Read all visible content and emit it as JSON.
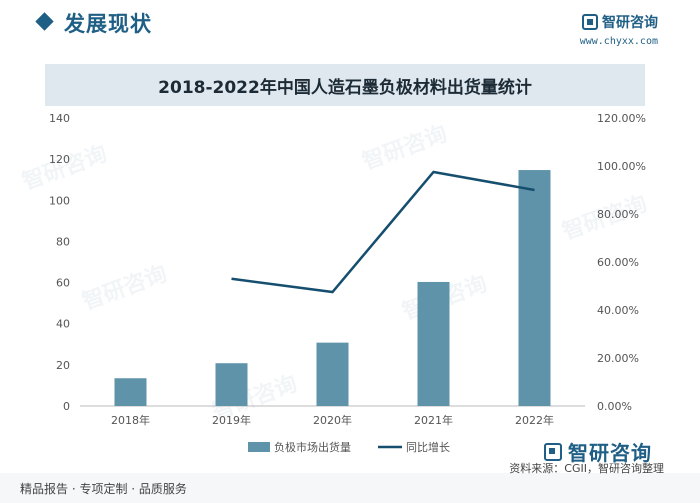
{
  "header": {
    "section_title": "发展现状",
    "logo_text": "智研咨询",
    "site_url": "www.chyxx.com"
  },
  "chart_title": "2018-2022年中国人造石墨负极材料出货量统计",
  "chart_data": {
    "type": "bar+line",
    "title": "2018-2022年中国人造石墨负极材料出货量统计",
    "categories": [
      "2018年",
      "2019年",
      "2020年",
      "2021年",
      "2022年"
    ],
    "series": [
      {
        "name": "负极市场出货量",
        "type": "bar",
        "axis": "left",
        "values": [
          13.5,
          20.8,
          30.8,
          60.3,
          114.7
        ],
        "color": "#5f93aa"
      },
      {
        "name": "同比增长",
        "type": "line",
        "axis": "right",
        "values": [
          null,
          53.0,
          47.5,
          97.5,
          90.0
        ],
        "color": "#154e6e"
      }
    ],
    "ylim": [
      0,
      140
    ],
    "yticks": [
      0,
      20,
      40,
      60,
      80,
      100,
      120,
      140
    ],
    "y2lim": [
      0,
      120
    ],
    "y2ticks": [
      "0.00%",
      "20.00%",
      "40.00%",
      "60.00%",
      "80.00%",
      "100.00%",
      "120.00%"
    ],
    "legend": "bottom",
    "grid": false
  },
  "footer": {
    "left_text": "精品报告 · 专项定制 · 品质服务",
    "logo_text": "智研咨询",
    "source": "资料来源：CGII，智研咨询整理"
  },
  "watermark_text": "智研咨询"
}
